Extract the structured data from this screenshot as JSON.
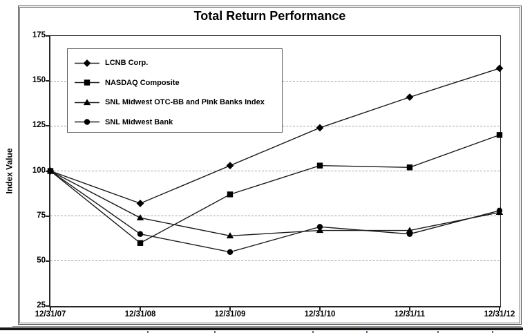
{
  "chart_data": {
    "type": "line",
    "title": "Total Return Performance",
    "ylabel": "Index Value",
    "xlabel": "",
    "x_labels": [
      "12/31/07",
      "12/31/08",
      "12/31/09",
      "12/31/10",
      "12/31/11",
      "12/31/12"
    ],
    "ylim": [
      25,
      175
    ],
    "yticks": [
      175,
      150,
      125,
      100,
      75,
      50,
      25
    ],
    "grid_values": [
      150,
      125,
      100,
      75,
      50
    ],
    "grid_style": "dashed-horizontal",
    "legend_position": "top-left-inside",
    "line_color": "#1a1a1a",
    "gridline_color": "#9e9e9e",
    "series": [
      {
        "name": "LCNB Corp.",
        "marker": "diamond",
        "color": "#000000",
        "values": [
          100,
          82,
          103,
          124,
          141,
          157
        ]
      },
      {
        "name": "NASDAQ Composite",
        "marker": "square",
        "color": "#000000",
        "values": [
          100,
          60,
          87,
          103,
          102,
          120
        ]
      },
      {
        "name": "SNL Midwest OTC-BB and Pink Banks Index",
        "marker": "triangle",
        "color": "#000000",
        "values": [
          100,
          74,
          64,
          67,
          67,
          77
        ]
      },
      {
        "name": "SNL Midwest Bank",
        "marker": "circle",
        "color": "#000000",
        "values": [
          100,
          65,
          55,
          69,
          65,
          78
        ]
      }
    ]
  },
  "decor": {
    "bottom_rule_color": "#161616",
    "table_tick_color": "#4a6fa5",
    "table_tick_positions": [
      213,
      310,
      452,
      530,
      633,
      712
    ]
  }
}
